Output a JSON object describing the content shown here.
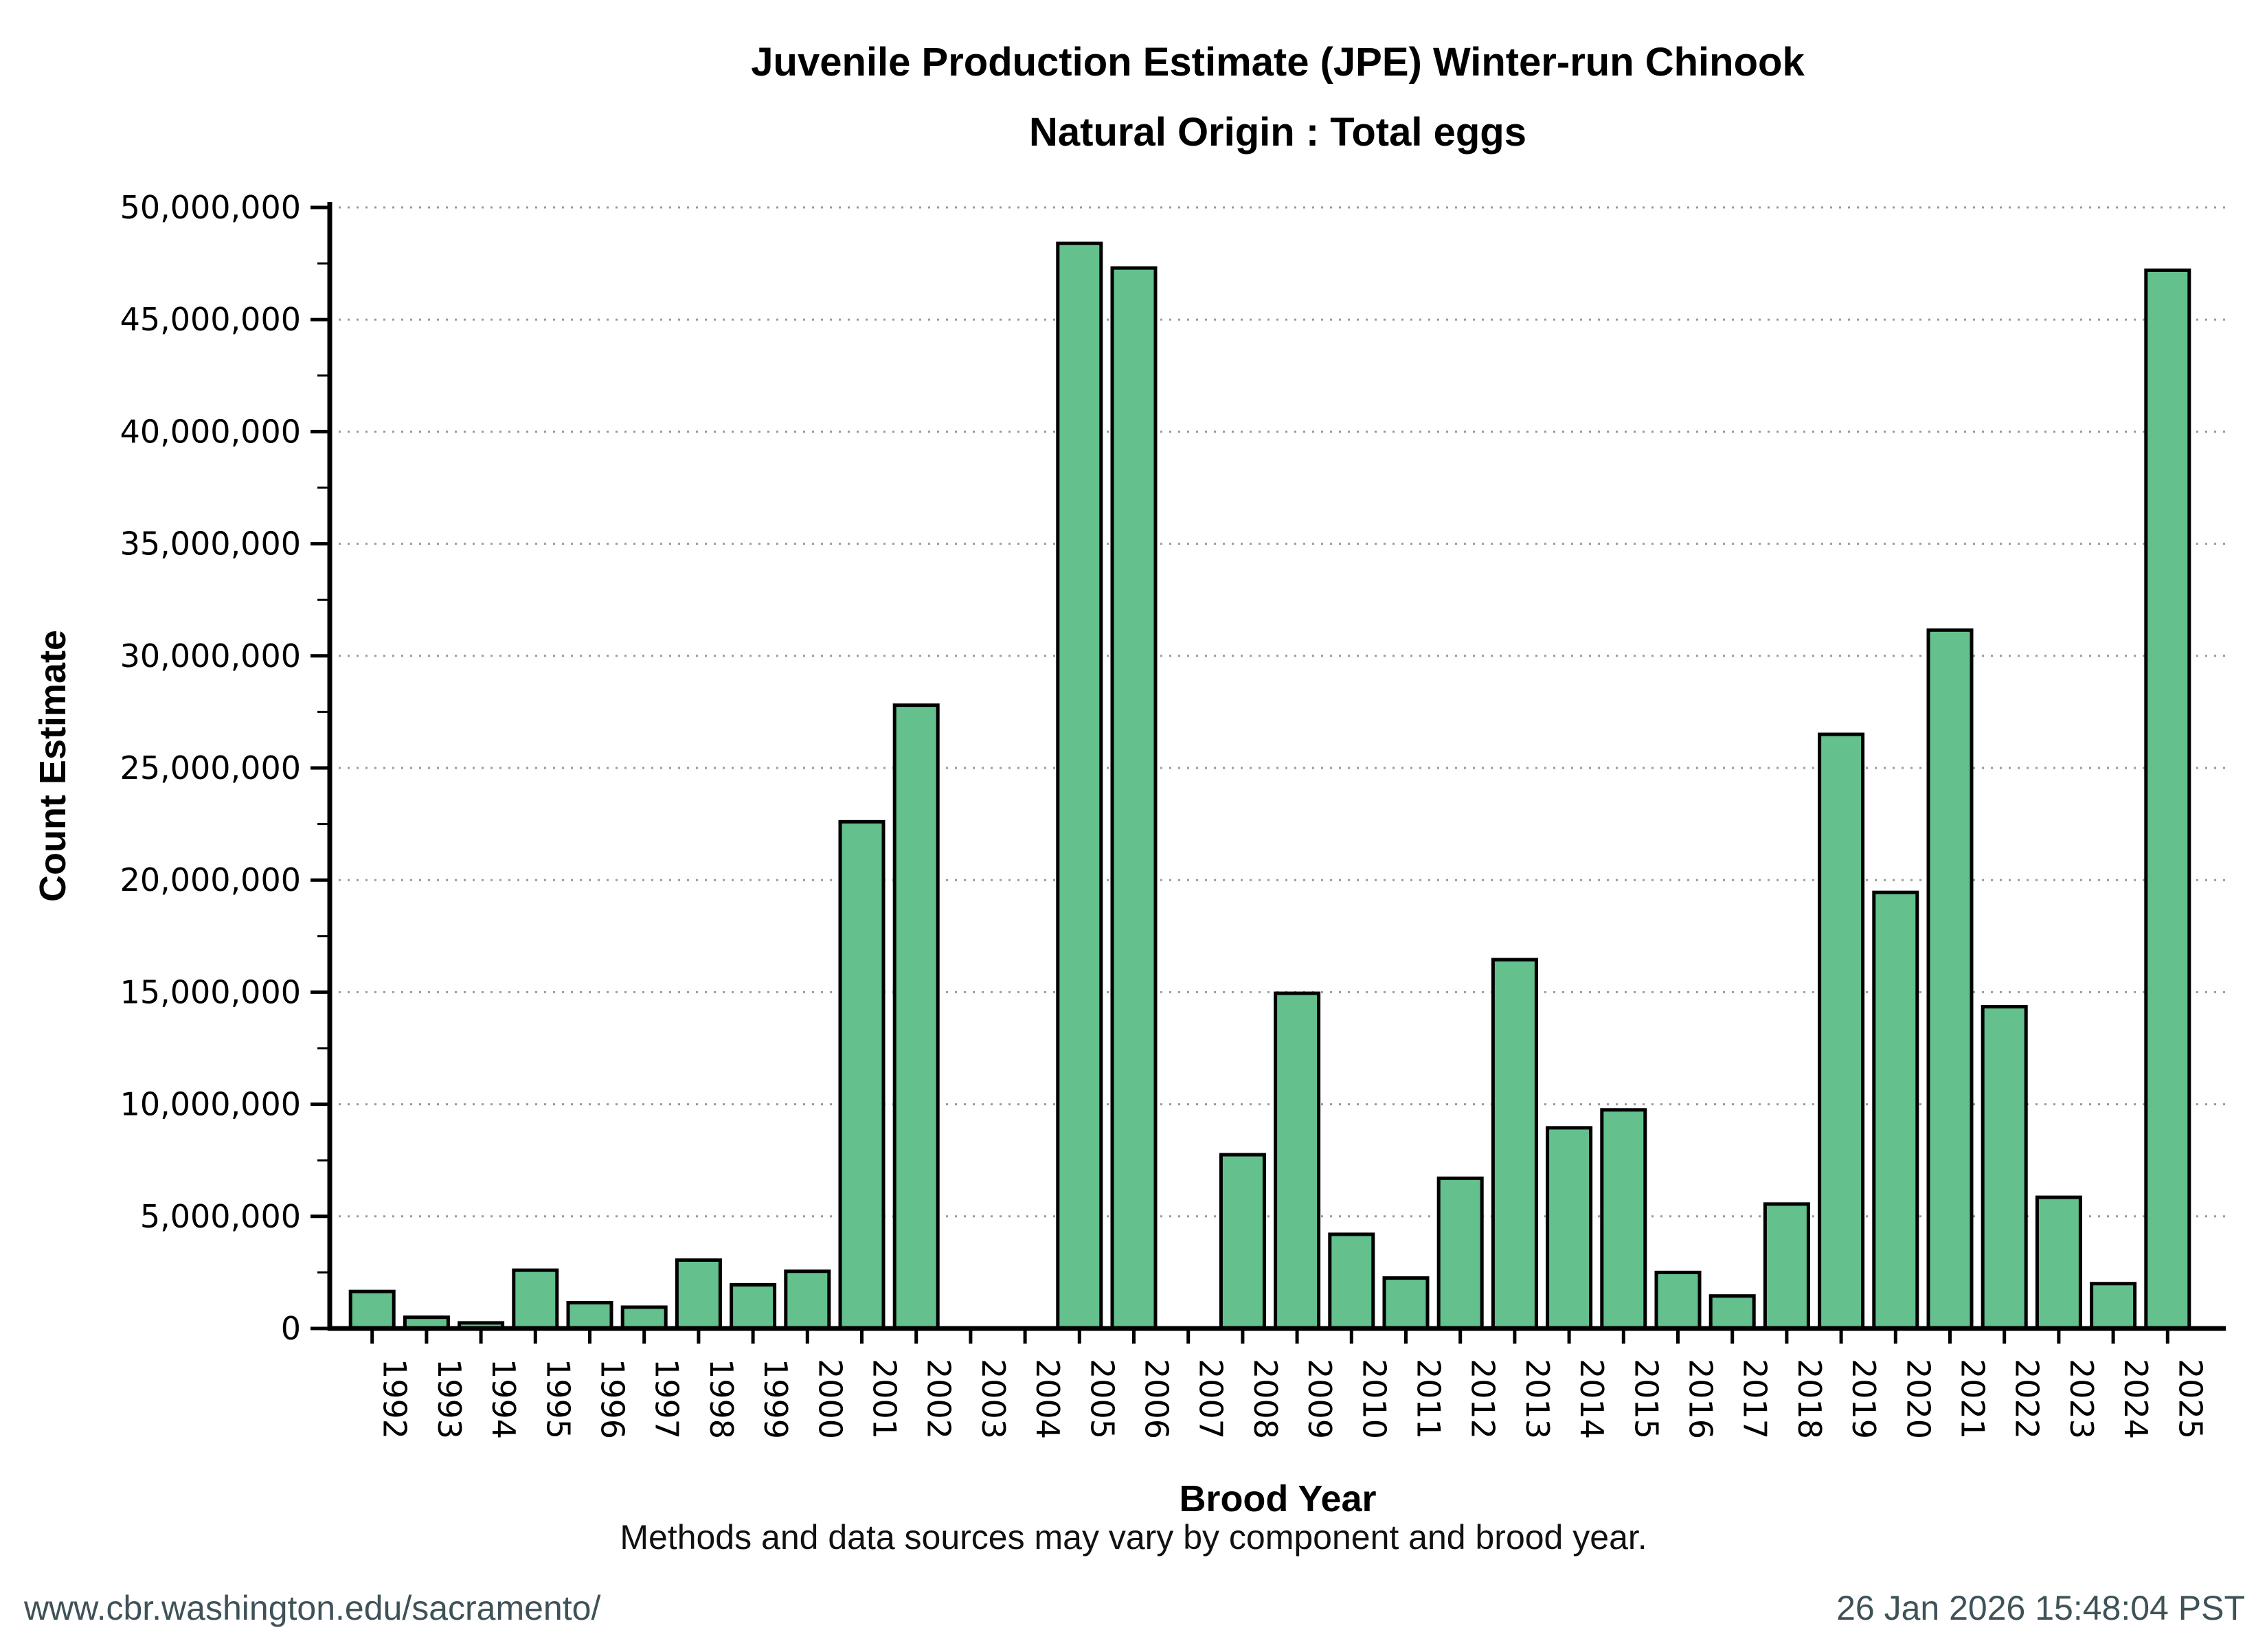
{
  "figure": {
    "title_line1": "Juvenile Production Estimate (JPE) Winter-run Chinook",
    "title_line2": "Natural Origin : Total eggs",
    "note": "Methods and data sources may vary by component and brood year.",
    "footer": {
      "url": "www.cbr.washington.edu/sacramento/",
      "timestamp": "26 Jan 2026 15:48:04 PST",
      "text_color": "#3e5258"
    }
  },
  "chart_data": {
    "type": "bar",
    "title": "Juvenile Production Estimate (JPE) Winter-run Chinook Natural Origin : Total eggs",
    "xlabel": "Brood Year",
    "ylabel": "Count Estimate",
    "ylim": [
      0,
      50000000
    ],
    "y_tick_step": 5000000,
    "y_tick_values": [
      0,
      5000000,
      10000000,
      15000000,
      20000000,
      25000000,
      30000000,
      35000000,
      40000000,
      45000000,
      50000000
    ],
    "y_tick_labels": [
      "0",
      "5,000,000",
      "10,000,000",
      "15,000,000",
      "20,000,000",
      "25,000,000",
      "30,000,000",
      "35,000,000",
      "40,000,000",
      "45,000,000",
      "50,000,000"
    ],
    "grid": "horizontal-dotted",
    "legend": "none",
    "categories": [
      "1992",
      "1993",
      "1994",
      "1995",
      "1996",
      "1997",
      "1998",
      "1999",
      "2000",
      "2001",
      "2002",
      "2003",
      "2004",
      "2005",
      "2006",
      "2007",
      "2008",
      "2009",
      "2010",
      "2011",
      "2012",
      "2013",
      "2014",
      "2015",
      "2016",
      "2017",
      "2018",
      "2019",
      "2020",
      "2021",
      "2022",
      "2023",
      "2024",
      "2025"
    ],
    "values": [
      1650000,
      500000,
      250000,
      2600000,
      1150000,
      950000,
      3050000,
      1950000,
      2550000,
      22600000,
      27800000,
      null,
      null,
      48400000,
      47300000,
      null,
      7750000,
      14950000,
      4200000,
      2250000,
      6700000,
      16450000,
      8950000,
      9750000,
      2500000,
      1450000,
      5550000,
      26500000,
      19450000,
      31150000,
      14350000,
      5850000,
      2000000,
      47200000
    ],
    "missing_years": [
      "2003",
      "2004",
      "2007"
    ],
    "bar_color": "#64c08d",
    "bar_edge_color": "#000000",
    "gridline_color": "#999999",
    "axis_color": "#000000"
  }
}
